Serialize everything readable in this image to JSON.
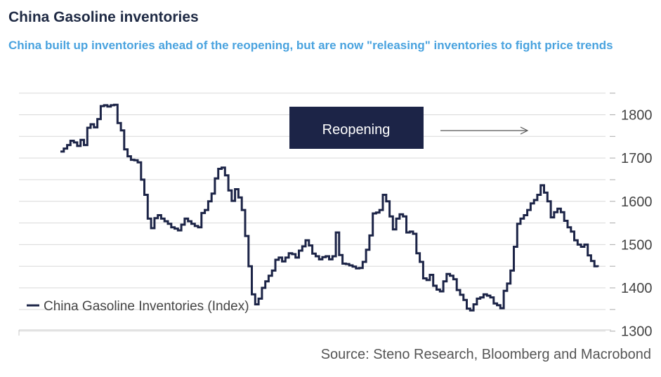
{
  "title": "China Gasoline inventories",
  "subtitle": "China built up inventories ahead of the reopening, but are now \"releasing\" inventories to fight price trends",
  "source": "Source: Steno Research, Bloomberg and Macrobond",
  "colors": {
    "title": "#1f2a44",
    "subtitle": "#4aa3df",
    "series": "#1c2447",
    "annotation_box": "#1c2447",
    "annotation_text": "#ffffff",
    "grid": "#d9d9d9"
  },
  "chart_data": {
    "type": "line",
    "title": "China Gasoline inventories",
    "ylim": [
      1280,
      1890
    ],
    "y_ticks": [
      1300,
      1400,
      1500,
      1600,
      1700,
      1800
    ],
    "y_axis_position": "right",
    "grid": true,
    "legend": {
      "position": "bottom-left",
      "entries": [
        "China Gasoline Inventories (Index)"
      ]
    },
    "annotation": {
      "text": "Reopening",
      "arrow": "right",
      "vertical_marker_index": 205
    },
    "series": [
      {
        "name": "China Gasoline Inventories (Index)",
        "values": [
          1715,
          1722,
          1730,
          1740,
          1736,
          1728,
          1742,
          1730,
          1770,
          1778,
          1771,
          1790,
          1820,
          1822,
          1819,
          1822,
          1823,
          1781,
          1764,
          1720,
          1704,
          1696,
          1695,
          1690,
          1650,
          1615,
          1560,
          1538,
          1561,
          1568,
          1560,
          1554,
          1548,
          1540,
          1537,
          1533,
          1546,
          1560,
          1554,
          1548,
          1543,
          1540,
          1573,
          1580,
          1600,
          1618,
          1653,
          1675,
          1678,
          1660,
          1625,
          1601,
          1628,
          1609,
          1580,
          1520,
          1450,
          1385,
          1362,
          1375,
          1400,
          1415,
          1428,
          1440,
          1465,
          1470,
          1461,
          1470,
          1480,
          1478,
          1470,
          1486,
          1496,
          1510,
          1498,
          1479,
          1473,
          1466,
          1471,
          1473,
          1466,
          1473,
          1528,
          1476,
          1456,
          1455,
          1452,
          1449,
          1445,
          1446,
          1460,
          1488,
          1521,
          1572,
          1574,
          1580,
          1615,
          1600,
          1565,
          1535,
          1560,
          1570,
          1565,
          1528,
          1530,
          1525,
          1480,
          1460,
          1422,
          1418,
          1430,
          1405,
          1396,
          1392,
          1415,
          1432,
          1428,
          1420,
          1395,
          1384,
          1372,
          1352,
          1348,
          1362,
          1375,
          1378,
          1385,
          1382,
          1378,
          1364,
          1360,
          1353,
          1393,
          1410,
          1440,
          1495,
          1548,
          1560,
          1568,
          1580,
          1595,
          1603,
          1615,
          1637,
          1620,
          1600,
          1563,
          1575,
          1583,
          1575,
          1555,
          1540,
          1530,
          1510,
          1500,
          1495,
          1500,
          1475,
          1462,
          1450,
          1448
        ]
      }
    ]
  }
}
